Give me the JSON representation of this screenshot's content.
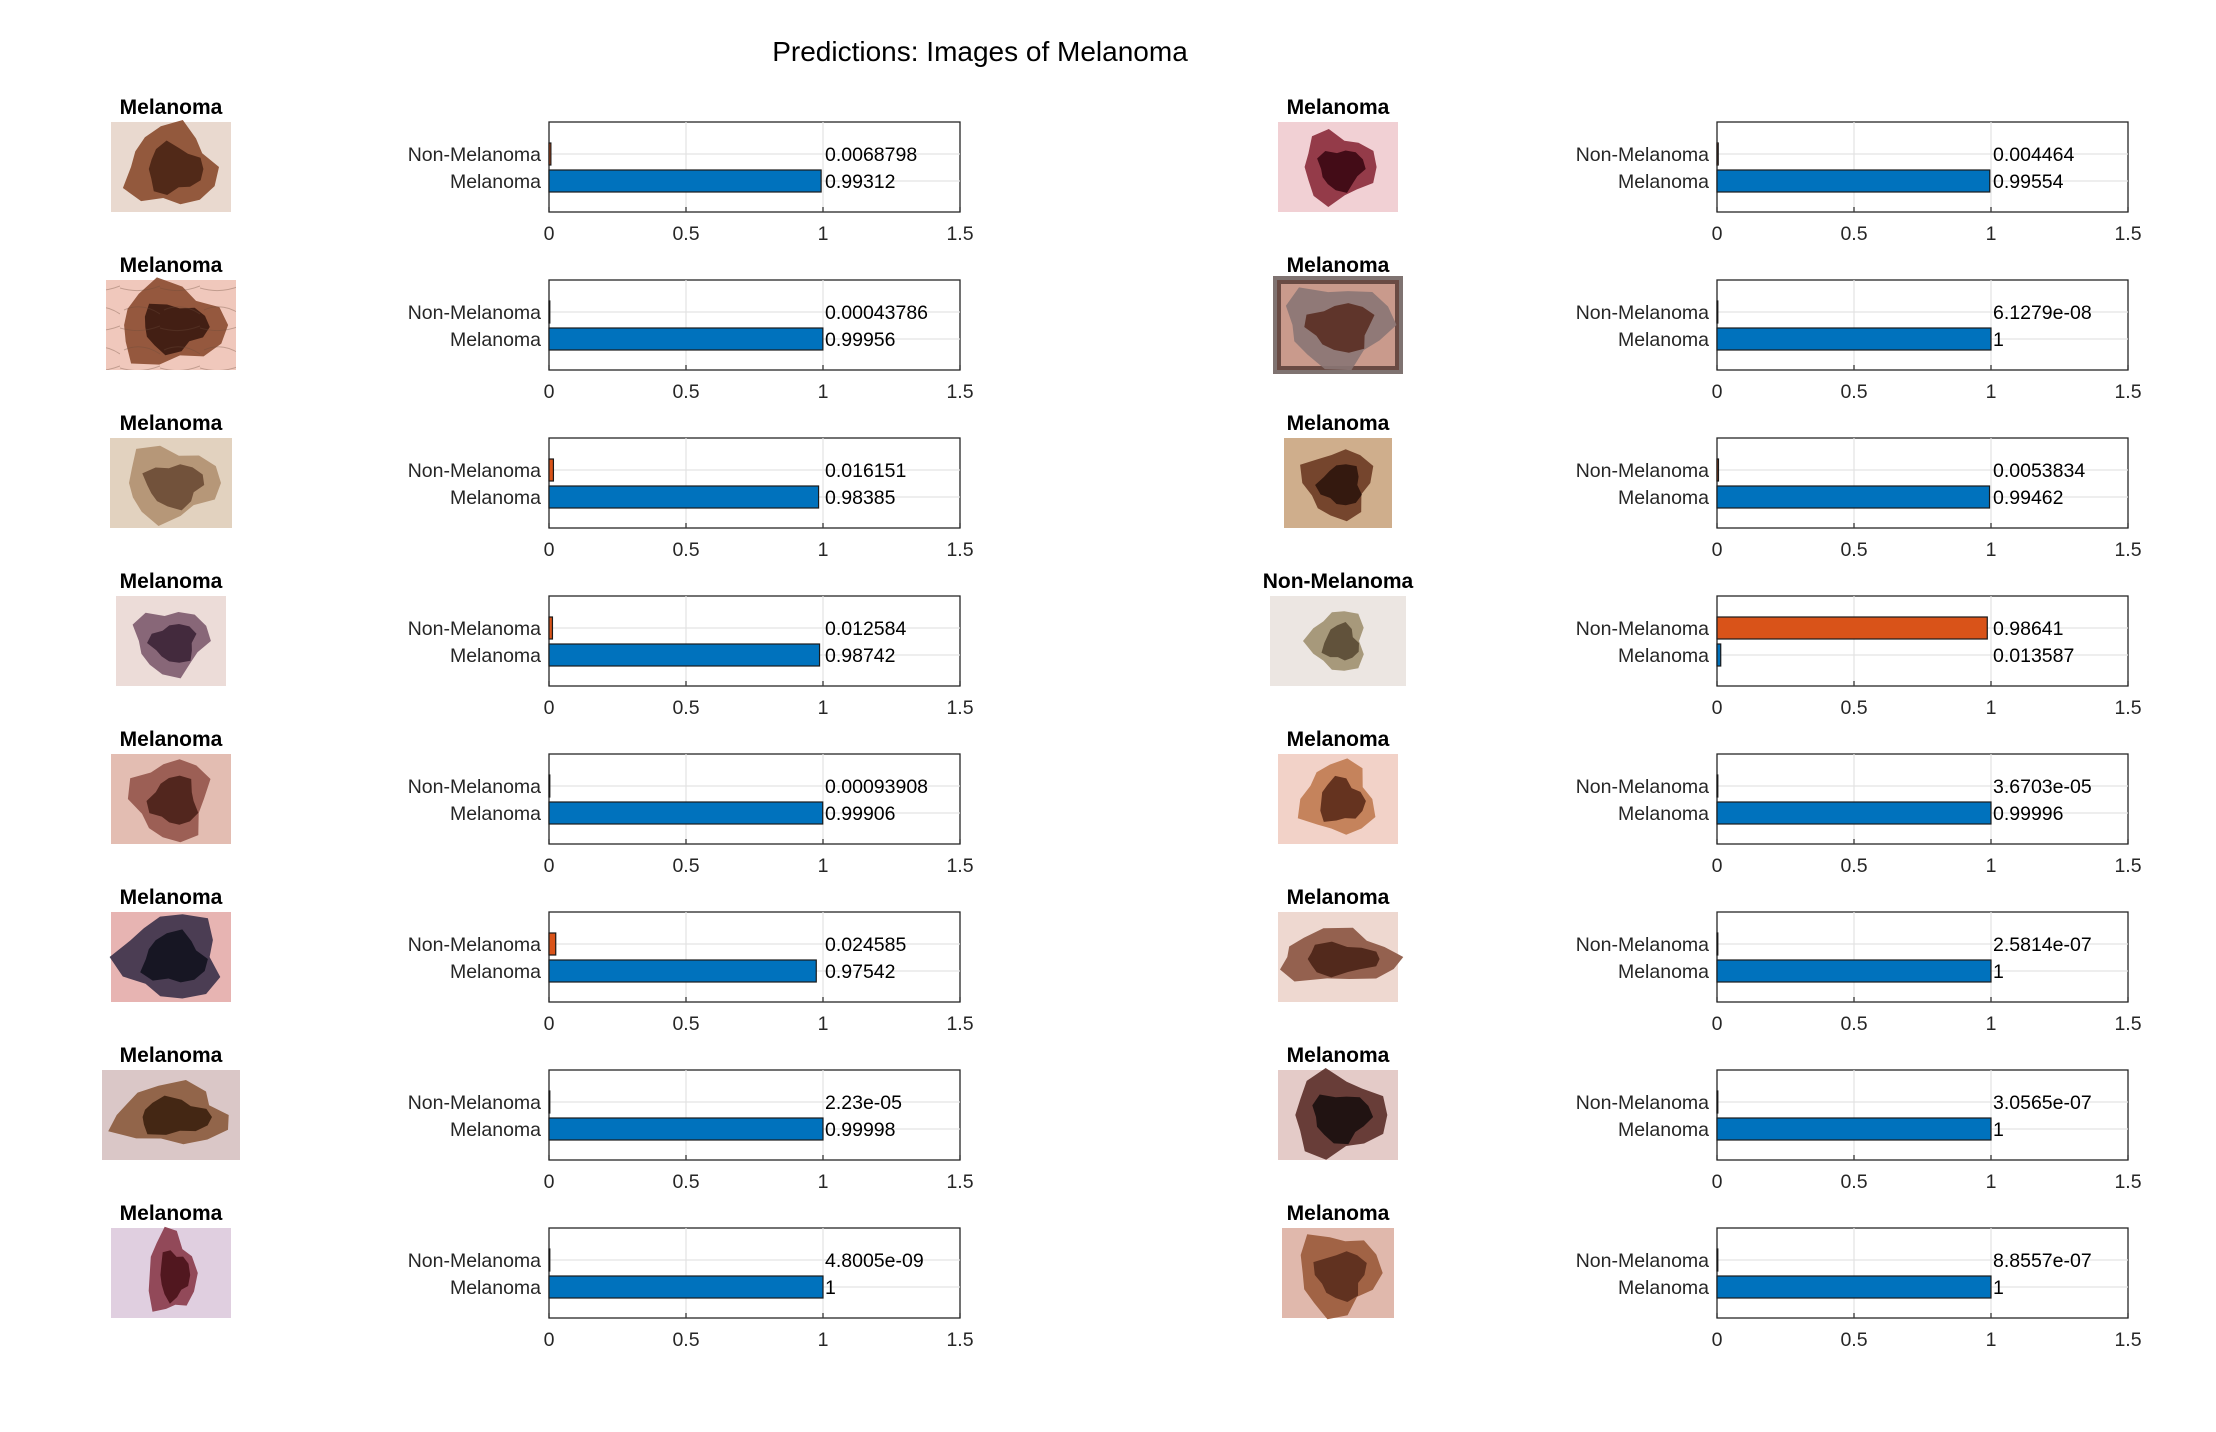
{
  "title": "Predictions: Images of Melanoma",
  "colors": {
    "melanoma": "#0072BD",
    "non_melanoma": "#D95319"
  },
  "chart_data": {
    "type": "bar",
    "orientation": "horizontal",
    "title": "Predictions: Images of Melanoma",
    "categories": [
      "Non-Melanoma",
      "Melanoma"
    ],
    "xlim": [
      0,
      1.5
    ],
    "xticks": [
      "0",
      "0.5",
      "1",
      "1.5"
    ],
    "grid": true,
    "panels": [
      {
        "image_title": "Melanoma",
        "lesion": "lesion-brown-round",
        "values": [
          0.0068798,
          0.99312
        ],
        "labels": [
          "0.0068798",
          "0.99312"
        ]
      },
      {
        "image_title": "Melanoma",
        "lesion": "lesion-dark-hairy",
        "values": [
          0.00043786,
          0.99956
        ],
        "labels": [
          "0.00043786",
          "0.99956"
        ]
      },
      {
        "image_title": "Melanoma",
        "lesion": "lesion-tan-oval",
        "values": [
          0.016151,
          0.98385
        ],
        "labels": [
          "0.016151",
          "0.98385"
        ]
      },
      {
        "image_title": "Melanoma",
        "lesion": "lesion-purple-irregular",
        "values": [
          0.012584,
          0.98742
        ],
        "labels": [
          "0.012584",
          "0.98742"
        ]
      },
      {
        "image_title": "Melanoma",
        "lesion": "lesion-reddish-irregular",
        "values": [
          0.00093908,
          0.99906
        ],
        "labels": [
          "0.00093908",
          "0.99906"
        ]
      },
      {
        "image_title": "Melanoma",
        "lesion": "lesion-black-large",
        "values": [
          0.024585,
          0.97542
        ],
        "labels": [
          "0.024585",
          "0.97542"
        ]
      },
      {
        "image_title": "Melanoma",
        "lesion": "lesion-brown-elongated",
        "values": [
          2.23e-05,
          0.99998
        ],
        "labels": [
          "2.23e-05",
          "0.99998"
        ]
      },
      {
        "image_title": "Melanoma",
        "lesion": "lesion-maroon-vertical",
        "values": [
          4.8005e-09,
          1
        ],
        "labels": [
          "4.8005e-09",
          "1"
        ]
      },
      {
        "image_title": "Melanoma",
        "lesion": "lesion-dark-red-pink",
        "values": [
          0.004464,
          0.99554
        ],
        "labels": [
          "0.004464",
          "0.99554"
        ]
      },
      {
        "image_title": "Melanoma",
        "lesion": "lesion-grey-brown-large",
        "values": [
          6.1279e-08,
          1
        ],
        "labels": [
          "6.1279e-08",
          "1"
        ]
      },
      {
        "image_title": "Melanoma",
        "lesion": "lesion-dark-compact",
        "values": [
          0.0053834,
          0.99462
        ],
        "labels": [
          "0.0053834",
          "0.99462"
        ]
      },
      {
        "image_title": "Non-Melanoma",
        "lesion": "lesion-light-brown-small",
        "values": [
          0.98641,
          0.013587
        ],
        "labels": [
          "0.98641",
          "0.013587"
        ]
      },
      {
        "image_title": "Melanoma",
        "lesion": "lesion-orange-brown",
        "values": [
          3.6703e-05,
          0.99996
        ],
        "labels": [
          "3.6703e-05",
          "0.99996"
        ]
      },
      {
        "image_title": "Melanoma",
        "lesion": "lesion-double-brown",
        "values": [
          2.5814e-07,
          1
        ],
        "labels": [
          "2.5814e-07",
          "1"
        ]
      },
      {
        "image_title": "Melanoma",
        "lesion": "lesion-black-speckled",
        "values": [
          3.0565e-07,
          1
        ],
        "labels": [
          "3.0565e-07",
          "1"
        ]
      },
      {
        "image_title": "Melanoma",
        "lesion": "lesion-brown-round-2",
        "values": [
          8.8557e-07,
          1
        ],
        "labels": [
          "8.8557e-07",
          "1"
        ]
      }
    ]
  }
}
